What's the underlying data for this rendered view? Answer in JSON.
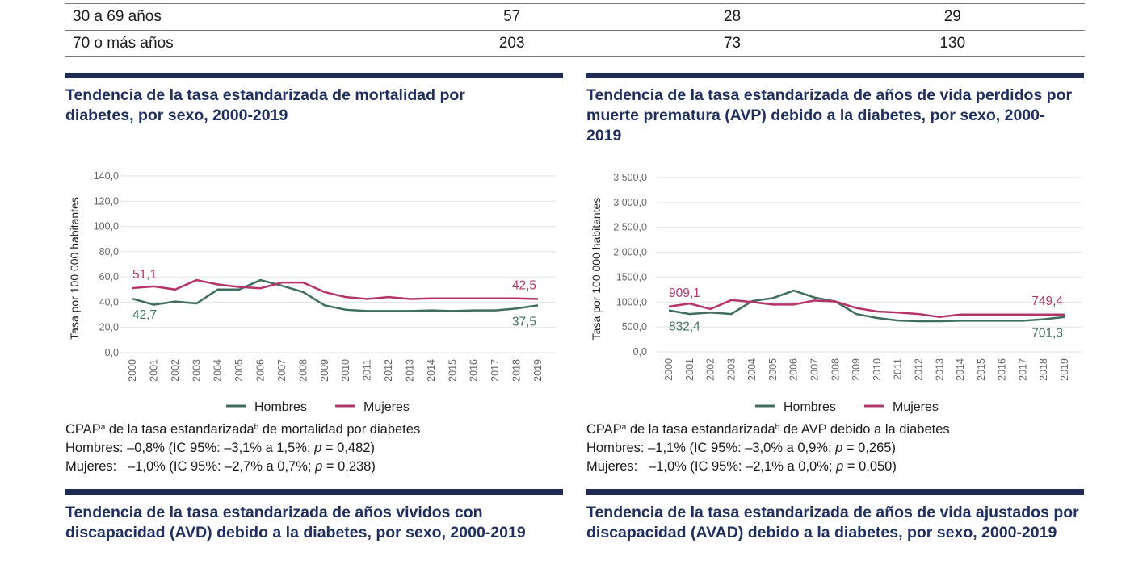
{
  "table": {
    "rows": [
      {
        "label": "30 a 69 años",
        "values": [
          "57",
          "28",
          "29"
        ]
      },
      {
        "label": "70 o más años",
        "values": [
          "203",
          "73",
          "130"
        ]
      }
    ]
  },
  "colors": {
    "hombres": "#3e6e5f",
    "mujeres": "#b5336b",
    "section_bar": "#1f2a55",
    "title": "#1f3060"
  },
  "sections": {
    "mortality_title": "Tendencia de la tasa estandarizada de mortalidad por diabetes, por sexo, 2000-2019",
    "avp_title": "Tendencia de la tasa estandarizada de años de vida perdidos por muerte prematura (AVP) debido a la diabetes, por sexo, 2000-2019",
    "avd_title": "Tendencia de la tasa estandarizada de años vividos con discapacidad (AVD) debido a la diabetes, por sexo, 2000-2019",
    "avad_title": "Tendencia de la tasa estandarizada de años de vida ajustados por discapacidad (AVAD) debido a la diabetes, por sexo, 2000-2019"
  },
  "legend": {
    "hombres": "Hombres",
    "mujeres": "Mujeres"
  },
  "stats": [
    {
      "head": {
        "a": "CPAP",
        "sup1": "a",
        "b": " de la tasa estandarizada",
        "sup2": "b",
        "c": " de mortalidad por diabetes"
      },
      "hombres": {
        "pre": "Hombres: –0,8% (IC 95%: –3,1% a 1,5%; ",
        "p": "p",
        "post": " = 0,482)"
      },
      "mujeres": {
        "pre": "Mujeres:   –1,0% (IC 95%: –2,7% a 0,7%; ",
        "p": "p",
        "post": " = 0,238)"
      }
    },
    {
      "head": {
        "a": "CPAP",
        "sup1": "a",
        "b": " de la tasa estandarizada",
        "sup2": "b",
        "c": " de AVP debido a la diabetes"
      },
      "hombres": {
        "pre": "Hombres: –1,1% (IC 95%: –3,0% a 0,9%; ",
        "p": "p",
        "post": " = 0,265)"
      },
      "mujeres": {
        "pre": "Mujeres:   –1,0% (IC 95%: –2,1% a 0,0%; ",
        "p": "p",
        "post": " = 0,050)"
      }
    }
  ],
  "chart_data": [
    {
      "type": "line",
      "ylabel": "Tasa por 100 000 habitantes",
      "ylim": [
        0,
        140
      ],
      "yticks": [
        "0,0",
        "20,0",
        "40,0",
        "60,0",
        "80,0",
        "100,0",
        "120,0",
        "140,0"
      ],
      "x": [
        "2000",
        "2001",
        "2002",
        "2003",
        "2004",
        "2005",
        "2006",
        "2007",
        "2008",
        "2009",
        "2010",
        "2011",
        "2012",
        "2013",
        "2014",
        "2015",
        "2016",
        "2017",
        "2018",
        "2019"
      ],
      "grid": true,
      "legend": "bottom",
      "series": [
        {
          "name": "Hombres",
          "values": [
            42.7,
            38,
            40.5,
            39,
            50,
            50,
            57.5,
            53,
            48,
            37.5,
            34,
            33,
            33,
            33,
            33.5,
            33,
            33.5,
            33.5,
            35,
            37.5
          ],
          "first_label": "42,7",
          "last_label": "37,5"
        },
        {
          "name": "Mujeres",
          "values": [
            51.1,
            52.5,
            50,
            57.5,
            54,
            52,
            51,
            55.5,
            55.5,
            48,
            44,
            42.5,
            44,
            42.5,
            43,
            43,
            43,
            43,
            43,
            42.5
          ],
          "first_label": "51,1",
          "last_label": "42,5"
        }
      ]
    },
    {
      "type": "line",
      "ylabel": "Tasa por 100 000 habitantes",
      "ylim": [
        0,
        3500
      ],
      "yticks": [
        "0,0",
        "500,0",
        "1000,0",
        "1500,0",
        "2 000,0",
        "2 500,0",
        "3 000,0",
        "3 500,0"
      ],
      "x": [
        "2000",
        "2001",
        "2002",
        "2003",
        "2004",
        "2005",
        "2006",
        "2007",
        "2008",
        "2009",
        "2010",
        "2011",
        "2012",
        "2013",
        "2014",
        "2015",
        "2016",
        "2017",
        "2018",
        "2019"
      ],
      "grid": true,
      "legend": "bottom",
      "series": [
        {
          "name": "Hombres",
          "values": [
            832.4,
            760,
            790,
            760,
            1020,
            1080,
            1230,
            1090,
            1010,
            760,
            680,
            630,
            615,
            615,
            625,
            625,
            625,
            625,
            655,
            701.3
          ],
          "first_label": "832,4",
          "last_label": "701,3"
        },
        {
          "name": "Mujeres",
          "values": [
            909.1,
            970,
            860,
            1040,
            1000,
            950,
            950,
            1030,
            1010,
            880,
            810,
            790,
            760,
            700,
            749,
            749,
            749,
            749,
            749,
            749.4
          ],
          "first_label": "909,1",
          "last_label": "749,4"
        }
      ]
    }
  ]
}
